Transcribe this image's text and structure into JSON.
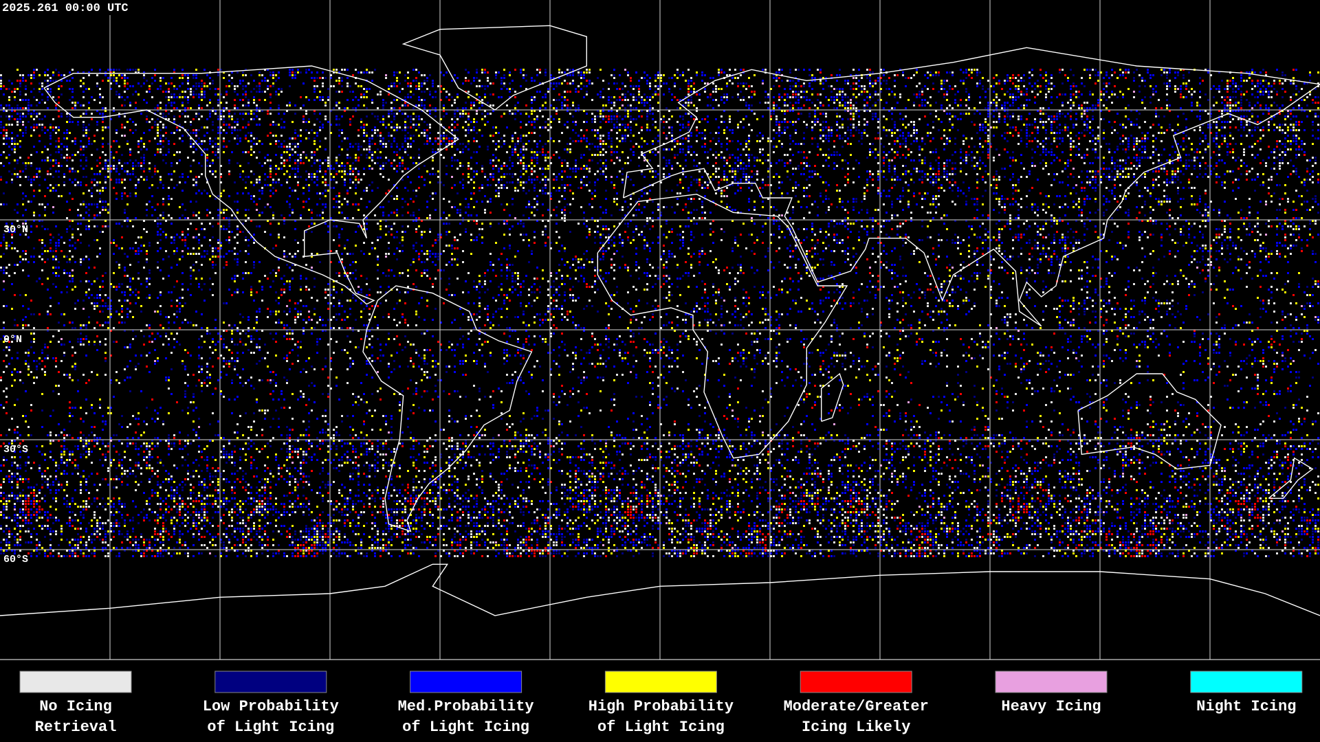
{
  "header": {
    "timestamp": "2025.261 00:00 UTC"
  },
  "map": {
    "latitude_labels": [
      "30°N",
      "0°N",
      "30°S",
      "60°S"
    ]
  },
  "legend": [
    {
      "lines": [
        "No Icing",
        "Retrieval"
      ],
      "color": "#e8e8e8"
    },
    {
      "lines": [
        "Low Probability",
        "of Light Icing"
      ],
      "color": "#000080"
    },
    {
      "lines": [
        "Med.Probability",
        "of Light Icing"
      ],
      "color": "#0000ff"
    },
    {
      "lines": [
        "High Probability",
        "of Light Icing"
      ],
      "color": "#ffff00"
    },
    {
      "lines": [
        "Moderate/Greater",
        "Icing Likely"
      ],
      "color": "#ff0000"
    },
    {
      "lines": [
        "Heavy Icing"
      ],
      "color": "#e8a0e0"
    },
    {
      "lines": [
        "Night Icing"
      ],
      "color": "#00ffff"
    }
  ]
}
